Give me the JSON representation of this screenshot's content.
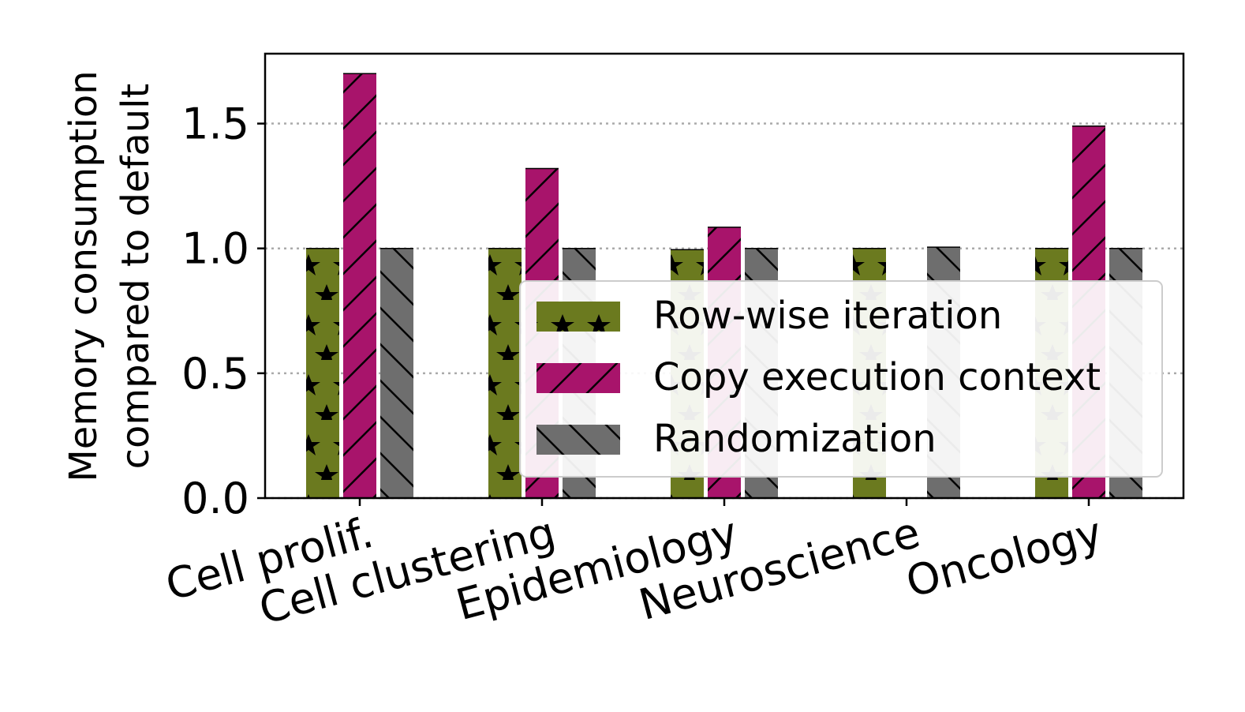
{
  "chart_data": {
    "type": "bar",
    "categories": [
      "Cell prolif.",
      "Cell clustering",
      "Epidemiology",
      "Neuroscience",
      "Oncology"
    ],
    "series": [
      {
        "name": "Row-wise iteration",
        "values": [
          1.0,
          1.0,
          0.995,
          1.0,
          1.0
        ],
        "color": "#6b7a1f",
        "hatch": "stars"
      },
      {
        "name": "Copy execution context",
        "values": [
          1.7,
          1.32,
          1.085,
          0.0,
          1.49
        ],
        "color": "#a8146b",
        "hatch": "forward-slash"
      },
      {
        "name": "Randomization",
        "values": [
          1.0,
          1.0,
          1.0,
          1.005,
          1.0
        ],
        "color": "#6e6e6e",
        "hatch": "back-slash"
      }
    ],
    "ylabel_lines": [
      "Memory consumption",
      "compared to default"
    ],
    "yticks": [
      "0.0",
      "0.5",
      "1.0",
      "1.5"
    ],
    "ytick_values": [
      0,
      0.5,
      1.0,
      1.5
    ],
    "ylim": [
      0,
      1.78
    ],
    "grid": "horizontal dotted",
    "legend_position": "lower right"
  }
}
